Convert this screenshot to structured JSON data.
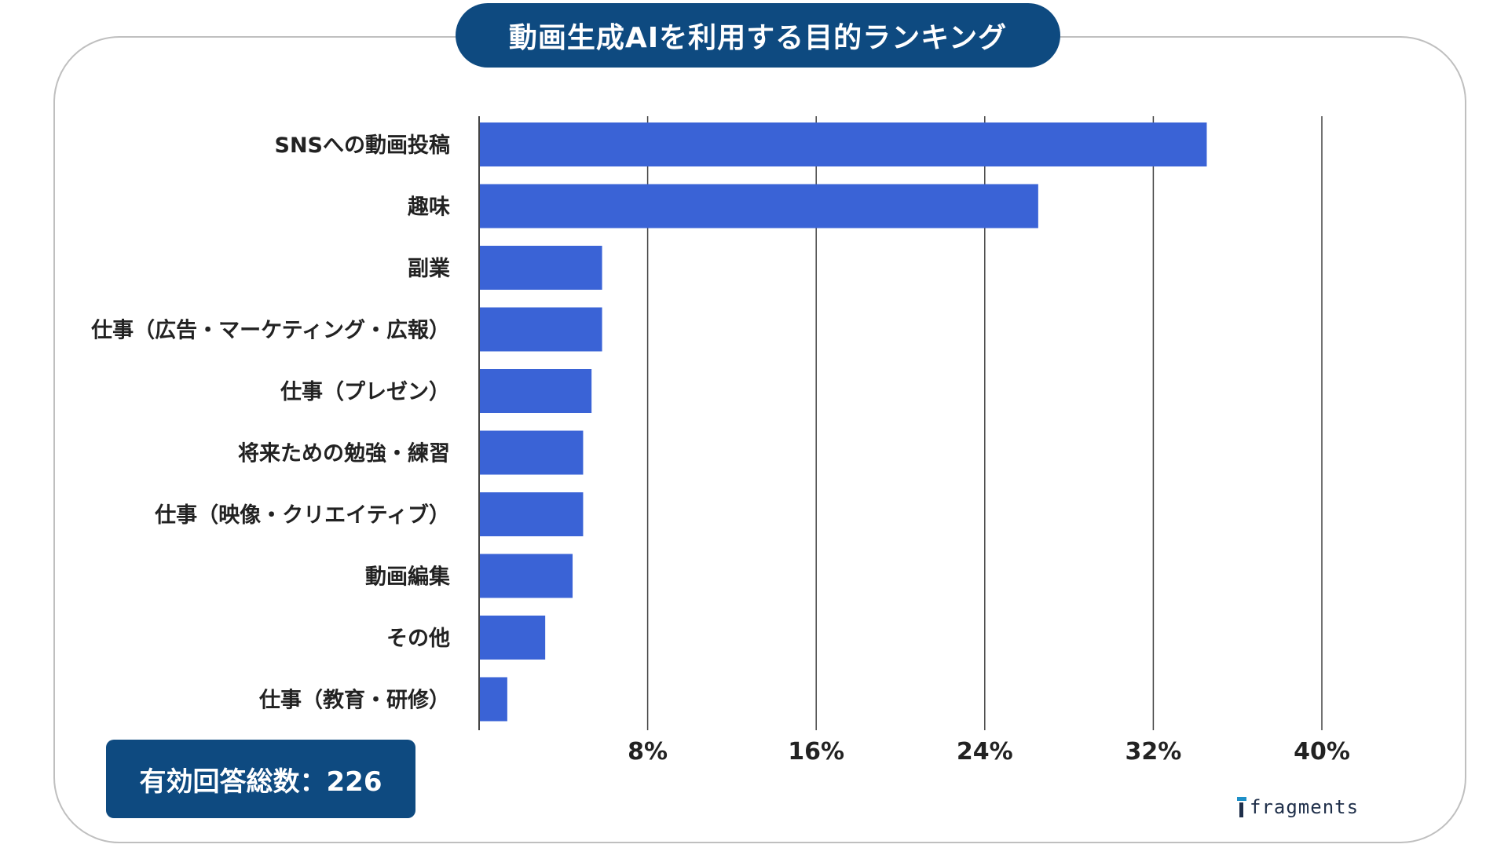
{
  "title": "動画生成AIを利用する目的ランキング",
  "total_label": "有効回答総数：226",
  "brand": "fragments",
  "colors": {
    "bar": "#3a63d6",
    "title_bg": "#0e4a80",
    "badge_bg": "#0e4a80",
    "grid": "#444444"
  },
  "chart_data": {
    "type": "bar",
    "orientation": "horizontal",
    "title": "動画生成AIを利用する目的ランキング",
    "categories": [
      "SNSへの動画投稿",
      "趣味",
      "副業",
      "仕事（広告・マーケティング・広報）",
      "仕事（プレゼン）",
      "将来ための勉強・練習",
      "仕事（映像・クリエイティブ）",
      "動画編集",
      "その他",
      "仕事（教育・研修）"
    ],
    "values": [
      34.5,
      26.5,
      5.8,
      5.8,
      5.3,
      4.9,
      4.9,
      4.4,
      3.1,
      1.3
    ],
    "xlim": [
      0,
      40
    ],
    "ticks": [
      "8%",
      "16%",
      "24%",
      "32%",
      "40%"
    ],
    "tick_values": [
      8,
      16,
      24,
      32,
      40
    ],
    "grid": true,
    "xlabel": "",
    "ylabel": ""
  }
}
